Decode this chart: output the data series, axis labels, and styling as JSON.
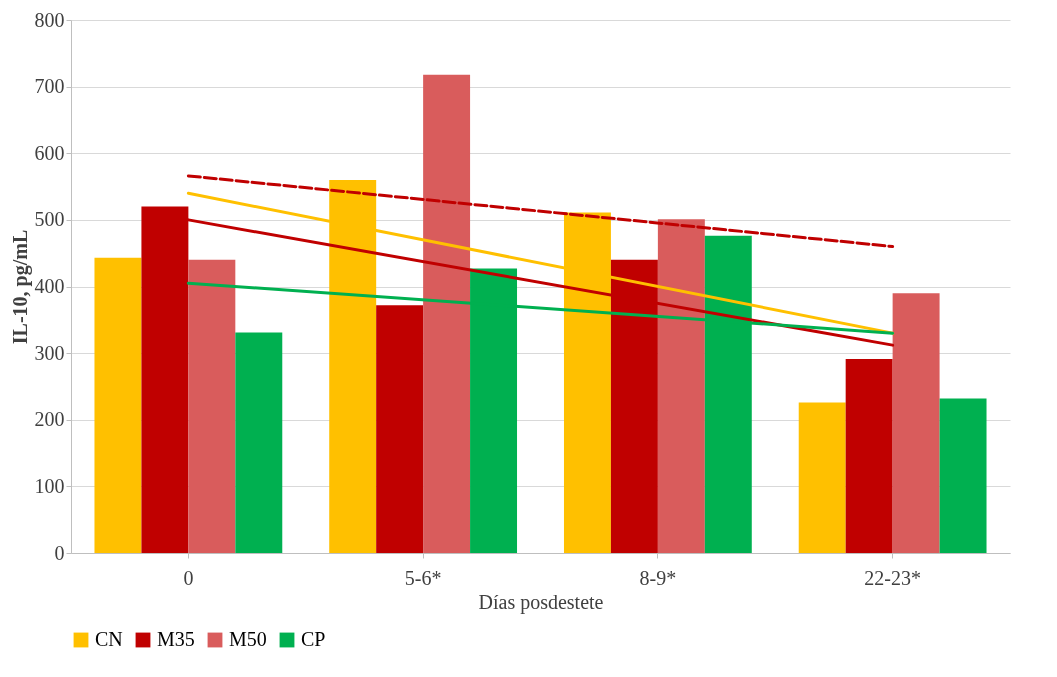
{
  "chart_data": {
    "type": "bar",
    "xlabel": "Días posdestete",
    "ylabel": "IL-10, pg/mL",
    "categories": [
      "0",
      "5-6*",
      "8-9*",
      "22-23*"
    ],
    "series": [
      {
        "name": "CN",
        "color": "#ffc000",
        "values": [
          443,
          560,
          511,
          226
        ]
      },
      {
        "name": "M35",
        "color": "#c00000",
        "values": [
          520,
          372,
          440,
          291
        ]
      },
      {
        "name": "M50",
        "color": "#d95c5c",
        "values": [
          440,
          718,
          501,
          390
        ]
      },
      {
        "name": "CP",
        "color": "#00b050",
        "values": [
          331,
          427,
          476,
          232
        ]
      },
      {
        "type": "line",
        "color": "#ffc000",
        "x": [
          "0",
          "22-23*"
        ],
        "values": [
          540,
          330
        ]
      },
      {
        "type": "line",
        "color": "#c00000",
        "x": [
          "0",
          "22-23*"
        ],
        "values": [
          500,
          312
        ]
      },
      {
        "type": "line",
        "color": "#c00000",
        "line_style": "dashed",
        "x": [
          "0",
          "22-23*"
        ],
        "values": [
          566,
          460
        ]
      },
      {
        "type": "line",
        "color": "#00b050",
        "x": [
          "0",
          "22-23*"
        ],
        "values": [
          405,
          330
        ]
      }
    ],
    "ylim": [
      0,
      800
    ],
    "yticks": [
      0,
      100,
      200,
      300,
      400,
      500,
      600,
      700,
      800
    ],
    "grid": "y",
    "legend": "bottom"
  }
}
